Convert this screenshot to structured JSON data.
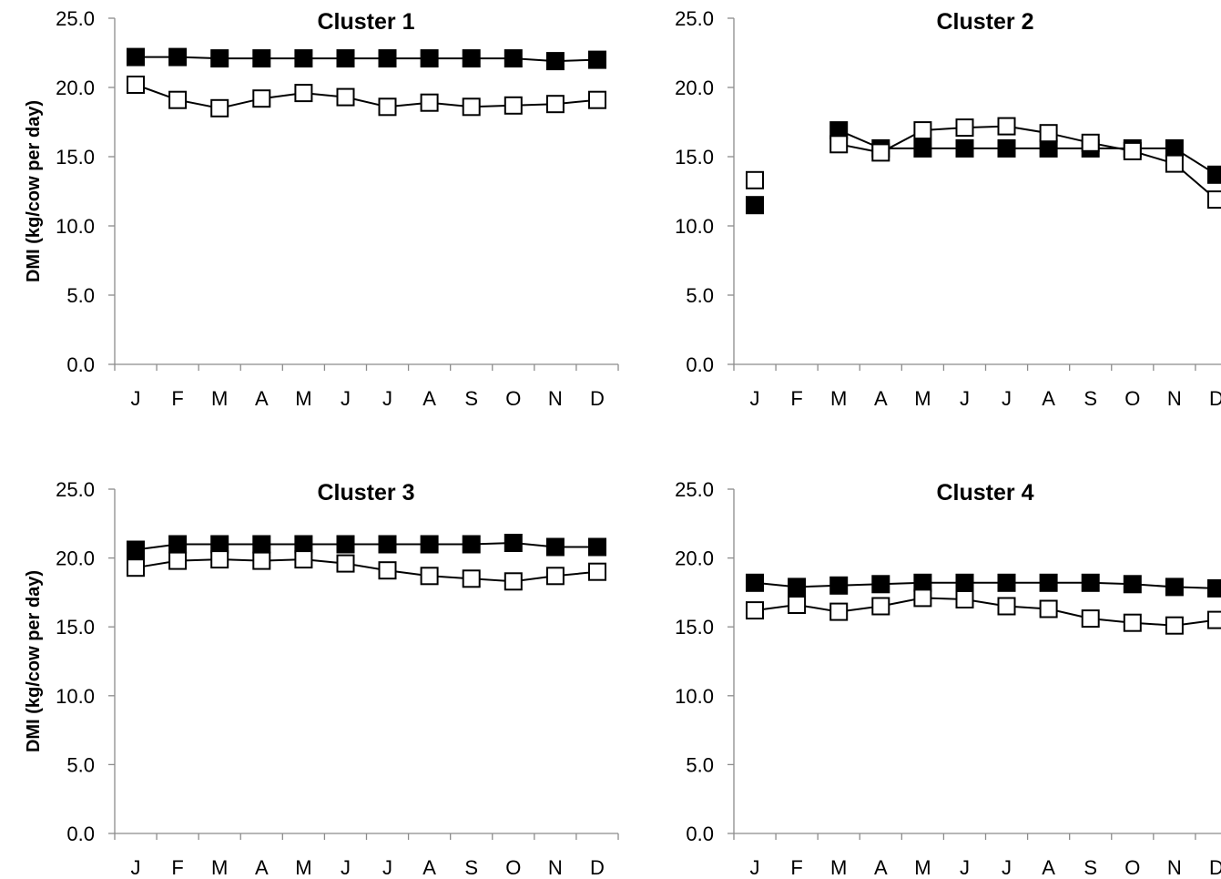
{
  "chart_data": [
    {
      "type": "line",
      "title": "Cluster 1",
      "ylabel": "DMI (kg/cow per day)",
      "categories": [
        "J",
        "F",
        "M",
        "A",
        "M",
        "J",
        "J",
        "A",
        "S",
        "O",
        "N",
        "D"
      ],
      "yticks": [
        "0.0",
        "5.0",
        "10.0",
        "15.0",
        "20.0",
        "25.0"
      ],
      "ylim": [
        0,
        25
      ],
      "series": [
        {
          "marker": "filled-square",
          "color": "#000000",
          "values": [
            22.2,
            22.2,
            22.1,
            22.1,
            22.1,
            22.1,
            22.1,
            22.1,
            22.1,
            22.1,
            21.9,
            22.0
          ]
        },
        {
          "marker": "open-square",
          "color": "#000000",
          "values": [
            20.2,
            19.1,
            18.5,
            19.2,
            19.6,
            19.3,
            18.6,
            18.9,
            18.6,
            18.7,
            18.8,
            19.1
          ]
        }
      ]
    },
    {
      "type": "line",
      "title": "Cluster 2",
      "ylabel": "",
      "categories": [
        "J",
        "F",
        "M",
        "A",
        "M",
        "J",
        "J",
        "A",
        "S",
        "O",
        "N",
        "D"
      ],
      "yticks": [
        "0.0",
        "5.0",
        "10.0",
        "15.0",
        "20.0",
        "25.0"
      ],
      "ylim": [
        0,
        25
      ],
      "series": [
        {
          "marker": "filled-square",
          "color": "#000000",
          "values": [
            11.5,
            null,
            16.9,
            15.6,
            15.6,
            15.6,
            15.6,
            15.6,
            15.6,
            15.6,
            15.6,
            13.7
          ]
        },
        {
          "marker": "open-square",
          "color": "#000000",
          "values": [
            13.3,
            null,
            15.9,
            15.3,
            16.9,
            17.1,
            17.2,
            16.7,
            16.0,
            15.4,
            14.5,
            11.9
          ]
        }
      ]
    },
    {
      "type": "line",
      "title": "Cluster 3",
      "ylabel": "DMI (kg/cow per day)",
      "categories": [
        "J",
        "F",
        "M",
        "A",
        "M",
        "J",
        "J",
        "A",
        "S",
        "O",
        "N",
        "D"
      ],
      "yticks": [
        "0.0",
        "5.0",
        "10.0",
        "15.0",
        "20.0",
        "25.0"
      ],
      "ylim": [
        0,
        25
      ],
      "series": [
        {
          "marker": "filled-square",
          "color": "#000000",
          "values": [
            20.6,
            21.0,
            21.0,
            21.0,
            21.0,
            21.0,
            21.0,
            21.0,
            21.0,
            21.1,
            20.8,
            20.8
          ]
        },
        {
          "marker": "open-square",
          "color": "#000000",
          "values": [
            19.3,
            19.8,
            19.9,
            19.8,
            19.9,
            19.6,
            19.1,
            18.7,
            18.5,
            18.3,
            18.7,
            19.0
          ]
        }
      ]
    },
    {
      "type": "line",
      "title": "Cluster 4",
      "ylabel": "",
      "categories": [
        "J",
        "F",
        "M",
        "A",
        "M",
        "J",
        "J",
        "A",
        "S",
        "O",
        "N",
        "D"
      ],
      "yticks": [
        "0.0",
        "5.0",
        "10.0",
        "15.0",
        "20.0",
        "25.0"
      ],
      "ylim": [
        0,
        25
      ],
      "series": [
        {
          "marker": "filled-square",
          "color": "#000000",
          "values": [
            18.2,
            17.9,
            18.0,
            18.1,
            18.2,
            18.2,
            18.2,
            18.2,
            18.2,
            18.1,
            17.9,
            17.8
          ]
        },
        {
          "marker": "open-square",
          "color": "#000000",
          "values": [
            16.2,
            16.6,
            16.1,
            16.5,
            17.1,
            17.0,
            16.5,
            16.3,
            15.6,
            15.3,
            15.1,
            15.5
          ]
        }
      ]
    }
  ]
}
